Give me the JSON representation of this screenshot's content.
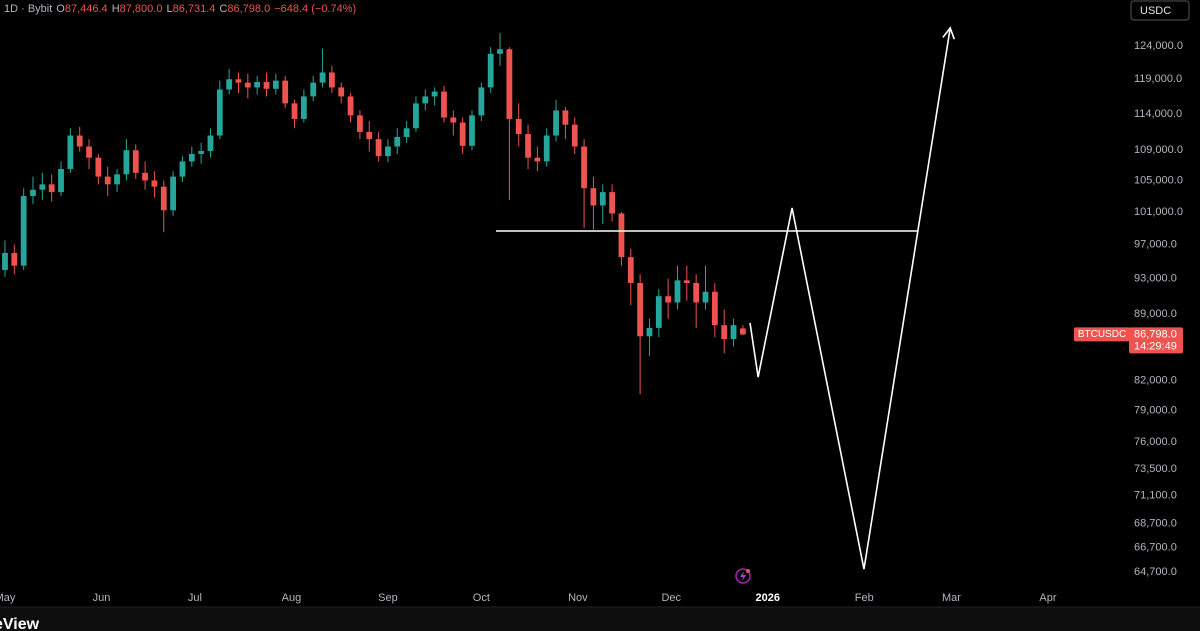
{
  "chart_data": {
    "type": "candlestick",
    "header": {
      "interval": "1D · Bybit",
      "ohlc": [
        {
          "key": "O",
          "value": "87,446.4"
        },
        {
          "key": "H",
          "value": "87,800.0"
        },
        {
          "key": "L",
          "value": "86,731.4"
        },
        {
          "key": "C",
          "value": "86,798.0"
        }
      ],
      "change": "−648.4 (−0.74%)"
    },
    "currency": "USDC",
    "symbol": "BTCUSDC",
    "last_price": {
      "value": 86798,
      "label": "86,798.0"
    },
    "countdown": "14:29:49",
    "watermark": "eView",
    "log_scale": true,
    "up_color": "#26a69a",
    "down_color": "#ef5350",
    "drawing_color": "#ffffff",
    "x": [
      0,
      3,
      6,
      9,
      12,
      15,
      18,
      21,
      24,
      27,
      30,
      33,
      36,
      39,
      42,
      45,
      48,
      51,
      54,
      57,
      60,
      63,
      66,
      69,
      72,
      75,
      78,
      81,
      84,
      87,
      90,
      93,
      96,
      99,
      102,
      105,
      108,
      111,
      114,
      117,
      120,
      123,
      126,
      129,
      132,
      135,
      138,
      141,
      144,
      147,
      150,
      153,
      156,
      159,
      162,
      165,
      168,
      171,
      174,
      177,
      180,
      183,
      186,
      189,
      192,
      195,
      198,
      201,
      204,
      207,
      210,
      213,
      216,
      219,
      222,
      225,
      228,
      231,
      234,
      237
    ],
    "open": [
      94000,
      96000,
      94500,
      103000,
      103800,
      104500,
      103500,
      106500,
      111000,
      109500,
      108000,
      105500,
      104500,
      105800,
      109000,
      106000,
      105000,
      104200,
      101200,
      105500,
      107500,
      108500,
      108900,
      111000,
      117500,
      119000,
      118500,
      117800,
      118600,
      117600,
      118800,
      115500,
      113300,
      116500,
      118500,
      120000,
      117800,
      116500,
      113800,
      111500,
      110500,
      108200,
      109500,
      110800,
      112000,
      115500,
      116500,
      117200,
      113500,
      112800,
      109600,
      113800,
      117800,
      122800,
      123500,
      113300,
      111200,
      108000,
      107500,
      111000,
      114500,
      112500,
      109500,
      104000,
      101800,
      103500,
      100800,
      95500,
      92500,
      86600,
      87500,
      91000,
      90300,
      92800,
      92500,
      90300,
      91500,
      87800,
      86300,
      87446.4
    ],
    "high": [
      97500,
      97000,
      104000,
      105500,
      106000,
      105800,
      107500,
      112000,
      112200,
      110500,
      108500,
      106800,
      106500,
      110500,
      109800,
      107500,
      106200,
      105000,
      106200,
      108200,
      109500,
      110000,
      112000,
      118800,
      120500,
      120000,
      119800,
      119500,
      120000,
      119800,
      119500,
      116000,
      117500,
      119500,
      123600,
      121000,
      118500,
      117000,
      114500,
      113000,
      111500,
      110500,
      112000,
      113000,
      116500,
      117500,
      117800,
      118000,
      114500,
      113500,
      114500,
      118500,
      123800,
      126000,
      123800,
      115500,
      112500,
      109500,
      112000,
      116000,
      115000,
      113500,
      110500,
      105500,
      104500,
      104500,
      101000,
      96500,
      93500,
      88500,
      91800,
      93000,
      94500,
      94500,
      93500,
      94500,
      92500,
      89500,
      88500,
      87800
    ],
    "low": [
      93200,
      93500,
      94000,
      102000,
      102500,
      102300,
      103000,
      106000,
      108800,
      106500,
      104500,
      103000,
      103500,
      105000,
      105200,
      103800,
      102800,
      98500,
      100500,
      104800,
      106800,
      107200,
      108000,
      110500,
      116800,
      117000,
      116200,
      116800,
      116500,
      116800,
      114800,
      112000,
      112800,
      115800,
      117800,
      117000,
      115500,
      112800,
      110500,
      108800,
      107500,
      107400,
      108500,
      110000,
      111500,
      114500,
      115200,
      112800,
      111000,
      108500,
      109000,
      113000,
      117000,
      121000,
      102500,
      109500,
      106500,
      106200,
      106800,
      110200,
      110500,
      108500,
      99000,
      98800,
      99500,
      99800,
      94500,
      90000,
      80600,
      84500,
      86500,
      88500,
      89500,
      90500,
      87500,
      89500,
      86500,
      84800,
      85500,
      86731.4
    ],
    "close": [
      96000,
      94500,
      103000,
      103800,
      104500,
      103500,
      106500,
      111000,
      109500,
      108000,
      105500,
      104500,
      105800,
      109000,
      106000,
      105000,
      104200,
      101200,
      105500,
      107500,
      108500,
      108900,
      111000,
      117500,
      119000,
      118500,
      117800,
      118600,
      117600,
      118800,
      115500,
      113300,
      116500,
      118500,
      120000,
      117800,
      116500,
      113800,
      111500,
      110500,
      108200,
      109500,
      110800,
      112000,
      115500,
      116500,
      117200,
      113500,
      112800,
      109600,
      113800,
      117800,
      122800,
      123500,
      113300,
      111200,
      108000,
      107500,
      111000,
      114500,
      112500,
      109500,
      104000,
      101800,
      103500,
      100800,
      95500,
      92500,
      86600,
      87500,
      91000,
      90300,
      92800,
      92500,
      90300,
      91500,
      87800,
      86300,
      87800,
      86798
    ],
    "xlim": [
      -1.6,
      360.7
    ],
    "xticks": [
      {
        "value": 0,
        "label": "May"
      },
      {
        "value": 31,
        "label": "Jun"
      },
      {
        "value": 61,
        "label": "Jul"
      },
      {
        "value": 92,
        "label": "Aug"
      },
      {
        "value": 123,
        "label": "Sep"
      },
      {
        "value": 153,
        "label": "Oct"
      },
      {
        "value": 184,
        "label": "Nov"
      },
      {
        "value": 214,
        "label": "Dec"
      },
      {
        "value": 245,
        "label": "2026",
        "bold": true
      },
      {
        "value": 276,
        "label": "Feb"
      },
      {
        "value": 304,
        "label": "Mar"
      },
      {
        "value": 335,
        "label": "Apr"
      }
    ],
    "ylim": [
      63280,
      131250
    ],
    "yticks": [
      {
        "value": 124000,
        "label": "124,000.0"
      },
      {
        "value": 119000,
        "label": "119,000.0"
      },
      {
        "value": 114000,
        "label": "114,000.0"
      },
      {
        "value": 109000,
        "label": "109,000.0"
      },
      {
        "value": 105000,
        "label": "105,000.0"
      },
      {
        "value": 101000,
        "label": "101,000.0"
      },
      {
        "value": 97000,
        "label": "97,000.0"
      },
      {
        "value": 93000,
        "label": "93,000.0"
      },
      {
        "value": 89000,
        "label": "89,000.0"
      },
      {
        "value": 82000,
        "label": "82,000.0"
      },
      {
        "value": 79000,
        "label": "79,000.0"
      },
      {
        "value": 76000,
        "label": "76,000.0"
      },
      {
        "value": 73500,
        "label": "73,500.0"
      },
      {
        "value": 71100,
        "label": "71,100.0"
      },
      {
        "value": 68700,
        "label": "68,700.0"
      },
      {
        "value": 66700,
        "label": "66,700.0"
      },
      {
        "value": 64700,
        "label": "64,700.0"
      }
    ],
    "horizontal_line": {
      "x": [
        157.7,
        293
      ],
      "y": [
        98640,
        98640
      ]
    },
    "projection": {
      "x": [
        239.3,
        241.9,
        252.8,
        275.9,
        303.6
      ],
      "y": [
        88040,
        82340,
        101490,
        64930,
        126800
      ]
    }
  }
}
